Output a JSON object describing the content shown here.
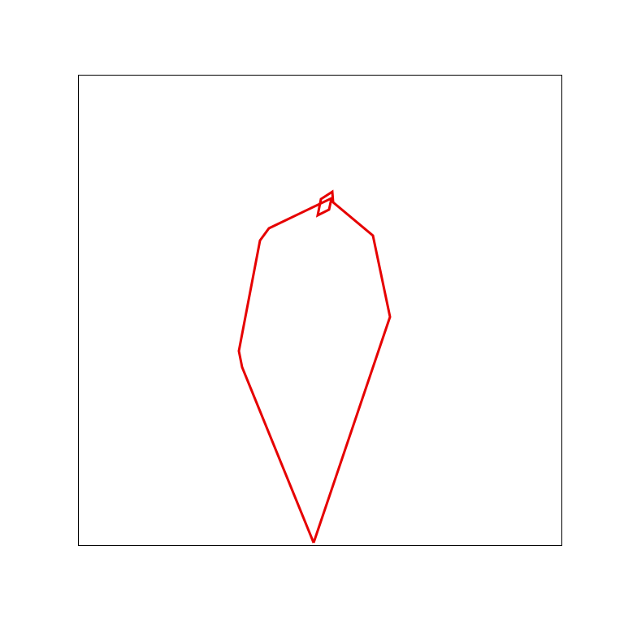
{
  "colors": {
    "background": "#ffffff",
    "frame": "#000000",
    "outline": "#e60000"
  },
  "shape": {
    "description_icon": "closed-polygon-outline"
  }
}
